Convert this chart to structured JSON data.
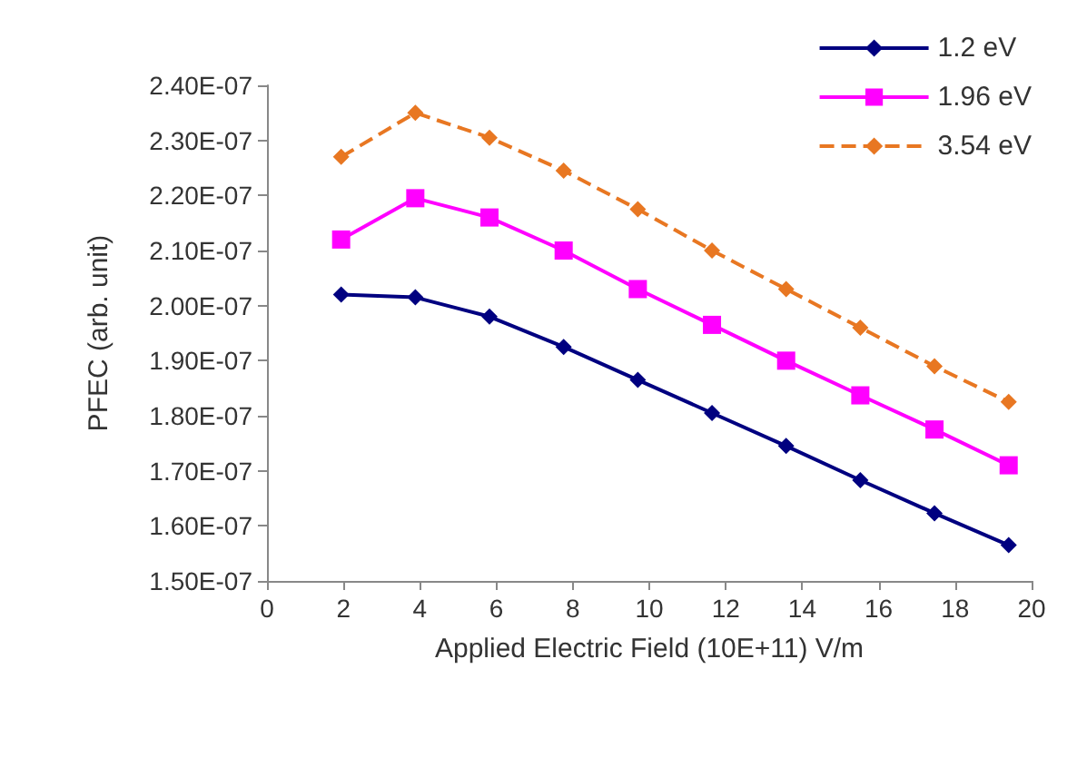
{
  "chart_data": {
    "type": "line",
    "xlabel": "Applied Electric Field (10E+11) V/m",
    "ylabel": "PFEC (arb. unit)",
    "x": [
      1.94,
      3.88,
      5.82,
      7.76,
      9.7,
      11.64,
      13.58,
      15.52,
      17.46,
      19.4
    ],
    "series": [
      {
        "name": "1.2 eV",
        "color": "#000080",
        "marker": "diamond",
        "line_style": "solid",
        "values": [
          2.02e-07,
          2.015e-07,
          1.98e-07,
          1.925e-07,
          1.865e-07,
          1.805e-07,
          1.745e-07,
          1.683e-07,
          1.623e-07,
          1.565e-07
        ]
      },
      {
        "name": "1.96 eV",
        "color": "#ff00ff",
        "marker": "square",
        "line_style": "solid",
        "values": [
          2.12e-07,
          2.195e-07,
          2.16e-07,
          2.1e-07,
          2.03e-07,
          1.965e-07,
          1.9e-07,
          1.837e-07,
          1.775e-07,
          1.71e-07
        ]
      },
      {
        "name": "3.54 eV",
        "color": "#e87722",
        "marker": "diamond",
        "line_style": "dashed",
        "values": [
          2.27e-07,
          2.35e-07,
          2.305e-07,
          2.245e-07,
          2.175e-07,
          2.1e-07,
          2.03e-07,
          1.96e-07,
          1.89e-07,
          1.825e-07
        ]
      }
    ],
    "xlim": [
      0,
      20
    ],
    "xticks": [
      0,
      2,
      4,
      6,
      8,
      10,
      12,
      14,
      16,
      18,
      20
    ],
    "ylim": [
      1.5e-07,
      2.4e-07
    ],
    "yticks": [
      {
        "value": 1.5e-07,
        "label": "1.50E-07"
      },
      {
        "value": 1.6e-07,
        "label": "1.60E-07"
      },
      {
        "value": 1.7e-07,
        "label": "1.70E-07"
      },
      {
        "value": 1.8e-07,
        "label": "1.80E-07"
      },
      {
        "value": 1.9e-07,
        "label": "1.90E-07"
      },
      {
        "value": 2e-07,
        "label": "2.00E-07"
      },
      {
        "value": 2.1e-07,
        "label": "2.10E-07"
      },
      {
        "value": 2.2e-07,
        "label": "2.20E-07"
      },
      {
        "value": 2.3e-07,
        "label": "2.30E-07"
      },
      {
        "value": 2.4e-07,
        "label": "2.40E-07"
      }
    ],
    "grid": false,
    "legend": "top right"
  }
}
